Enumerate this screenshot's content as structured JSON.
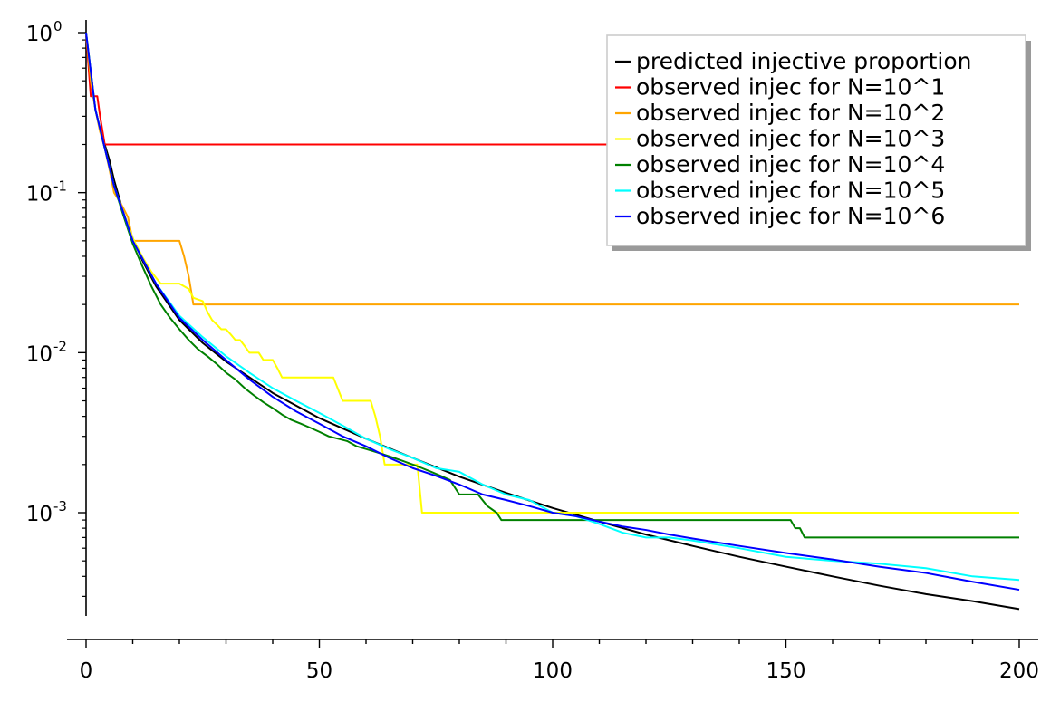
{
  "chart_data": {
    "type": "line",
    "title": "",
    "xlabel": "",
    "ylabel": "",
    "xlim": [
      0,
      200
    ],
    "ylim": [
      0.00023,
      1.1
    ],
    "yscale": "log",
    "grid": false,
    "legend_position": "top-right",
    "x_ticks": [
      {
        "value": 0,
        "label": "0"
      },
      {
        "value": 50,
        "label": "50"
      },
      {
        "value": 100,
        "label": "100"
      },
      {
        "value": 150,
        "label": "150"
      },
      {
        "value": 200,
        "label": "200"
      }
    ],
    "y_ticks": [
      {
        "value": 1,
        "base": "10",
        "exp": "0"
      },
      {
        "value": 0.1,
        "base": "10",
        "exp": "-1"
      },
      {
        "value": 0.01,
        "base": "10",
        "exp": "-2"
      },
      {
        "value": 0.001,
        "base": "10",
        "exp": "-3"
      }
    ],
    "series": [
      {
        "name": "predicted injective proportion",
        "color": "#000000",
        "x": [
          0,
          1,
          2,
          3,
          4,
          5,
          6,
          8,
          10,
          12,
          15,
          20,
          25,
          30,
          40,
          50,
          60,
          70,
          80,
          90,
          100,
          110,
          120,
          130,
          140,
          150,
          160,
          170,
          180,
          190,
          200
        ],
        "y": [
          1.0,
          0.5,
          0.333,
          0.25,
          0.2,
          0.16,
          0.12,
          0.075,
          0.052,
          0.038,
          0.026,
          0.016,
          0.0115,
          0.0088,
          0.0056,
          0.0039,
          0.0029,
          0.0022,
          0.00168,
          0.00133,
          0.00107,
          0.00088,
          0.00073,
          0.00062,
          0.00053,
          0.00046,
          0.0004,
          0.00035,
          0.00031,
          0.00028,
          0.00025
        ]
      },
      {
        "name": "observed injec for N=10^1",
        "color": "#ff0000",
        "x": [
          0,
          1,
          1.6,
          2,
          2.4,
          3,
          4,
          200
        ],
        "y": [
          1.0,
          0.4,
          0.4,
          0.4,
          0.4,
          0.3,
          0.2,
          0.2
        ]
      },
      {
        "name": "observed injec for N=10^2",
        "color": "#ffa500",
        "x": [
          0,
          1,
          2,
          3,
          4,
          5,
          6,
          7,
          8,
          9,
          10,
          20,
          21,
          22,
          23,
          200
        ],
        "y": [
          1.0,
          0.5,
          0.33,
          0.24,
          0.19,
          0.14,
          0.1,
          0.09,
          0.08,
          0.07,
          0.05,
          0.05,
          0.04,
          0.03,
          0.02,
          0.02
        ]
      },
      {
        "name": "observed injec for N=10^3",
        "color": "#ffff00",
        "x": [
          0,
          2,
          4,
          6,
          8,
          10,
          12,
          14,
          16,
          18,
          20,
          22,
          23,
          25,
          26,
          27,
          28,
          29,
          30,
          31,
          32,
          33,
          34,
          35,
          36,
          37,
          38,
          39,
          40,
          41,
          42,
          53,
          55,
          61,
          62,
          63,
          64,
          68,
          70,
          71,
          72,
          200
        ],
        "y": [
          1.0,
          0.33,
          0.19,
          0.11,
          0.075,
          0.052,
          0.04,
          0.032,
          0.027,
          0.027,
          0.027,
          0.025,
          0.022,
          0.021,
          0.018,
          0.016,
          0.015,
          0.014,
          0.014,
          0.013,
          0.012,
          0.012,
          0.011,
          0.01,
          0.01,
          0.01,
          0.009,
          0.009,
          0.009,
          0.008,
          0.007,
          0.007,
          0.005,
          0.005,
          0.004,
          0.003,
          0.002,
          0.002,
          0.002,
          0.002,
          0.001,
          0.001
        ]
      },
      {
        "name": "observed injec for N=10^4",
        "color": "#008000",
        "x": [
          0,
          2,
          4,
          6,
          8,
          10,
          12,
          14,
          16,
          18,
          20,
          22,
          24,
          26,
          28,
          30,
          32,
          34,
          36,
          38,
          40,
          42,
          44,
          46,
          48,
          50,
          52,
          54,
          56,
          58,
          60,
          62,
          64,
          66,
          68,
          70,
          72,
          74,
          76,
          78,
          80,
          82,
          84,
          86,
          88,
          89,
          151,
          152,
          153,
          154,
          200
        ],
        "y": [
          1.0,
          0.33,
          0.19,
          0.11,
          0.072,
          0.048,
          0.035,
          0.026,
          0.02,
          0.0165,
          0.014,
          0.012,
          0.0105,
          0.0095,
          0.0085,
          0.0075,
          0.0068,
          0.006,
          0.0054,
          0.0049,
          0.0045,
          0.0041,
          0.0038,
          0.0036,
          0.0034,
          0.0032,
          0.003,
          0.0029,
          0.0028,
          0.0026,
          0.0025,
          0.0024,
          0.0023,
          0.0022,
          0.0021,
          0.002,
          0.0019,
          0.0018,
          0.0017,
          0.0016,
          0.0013,
          0.0013,
          0.0013,
          0.0011,
          0.001,
          0.0009,
          0.0009,
          0.0008,
          0.0008,
          0.0007,
          0.0007
        ]
      },
      {
        "name": "observed injec for N=10^5",
        "color": "#00ffff",
        "x": [
          0,
          2,
          4,
          6,
          8,
          10,
          15,
          20,
          25,
          30,
          35,
          40,
          45,
          50,
          55,
          60,
          65,
          70,
          75,
          80,
          85,
          90,
          95,
          100,
          105,
          110,
          115,
          120,
          125,
          130,
          140,
          150,
          160,
          170,
          180,
          190,
          200
        ],
        "y": [
          1.0,
          0.33,
          0.19,
          0.11,
          0.075,
          0.05,
          0.027,
          0.017,
          0.0125,
          0.0095,
          0.0075,
          0.006,
          0.005,
          0.0042,
          0.0035,
          0.0029,
          0.0025,
          0.0022,
          0.0019,
          0.0018,
          0.0015,
          0.0013,
          0.0012,
          0.001,
          0.00095,
          0.00085,
          0.00075,
          0.0007,
          0.0007,
          0.00067,
          0.0006,
          0.00053,
          0.0005,
          0.00048,
          0.00045,
          0.0004,
          0.00038
        ]
      },
      {
        "name": "observed injec for N=10^6",
        "color": "#0000ff",
        "x": [
          0,
          2,
          4,
          6,
          8,
          10,
          15,
          20,
          25,
          30,
          35,
          40,
          45,
          50,
          55,
          60,
          65,
          70,
          75,
          80,
          85,
          90,
          95,
          100,
          105,
          110,
          115,
          120,
          125,
          130,
          140,
          150,
          160,
          170,
          180,
          190,
          200
        ],
        "y": [
          1.0,
          0.33,
          0.19,
          0.11,
          0.075,
          0.05,
          0.027,
          0.0165,
          0.012,
          0.009,
          0.0068,
          0.0053,
          0.0043,
          0.0036,
          0.003,
          0.0026,
          0.0022,
          0.0019,
          0.0017,
          0.0015,
          0.0013,
          0.0012,
          0.0011,
          0.001,
          0.00095,
          0.00088,
          0.00082,
          0.00078,
          0.00073,
          0.00069,
          0.00062,
          0.00056,
          0.00051,
          0.00046,
          0.00042,
          0.00037,
          0.00033
        ]
      }
    ]
  }
}
